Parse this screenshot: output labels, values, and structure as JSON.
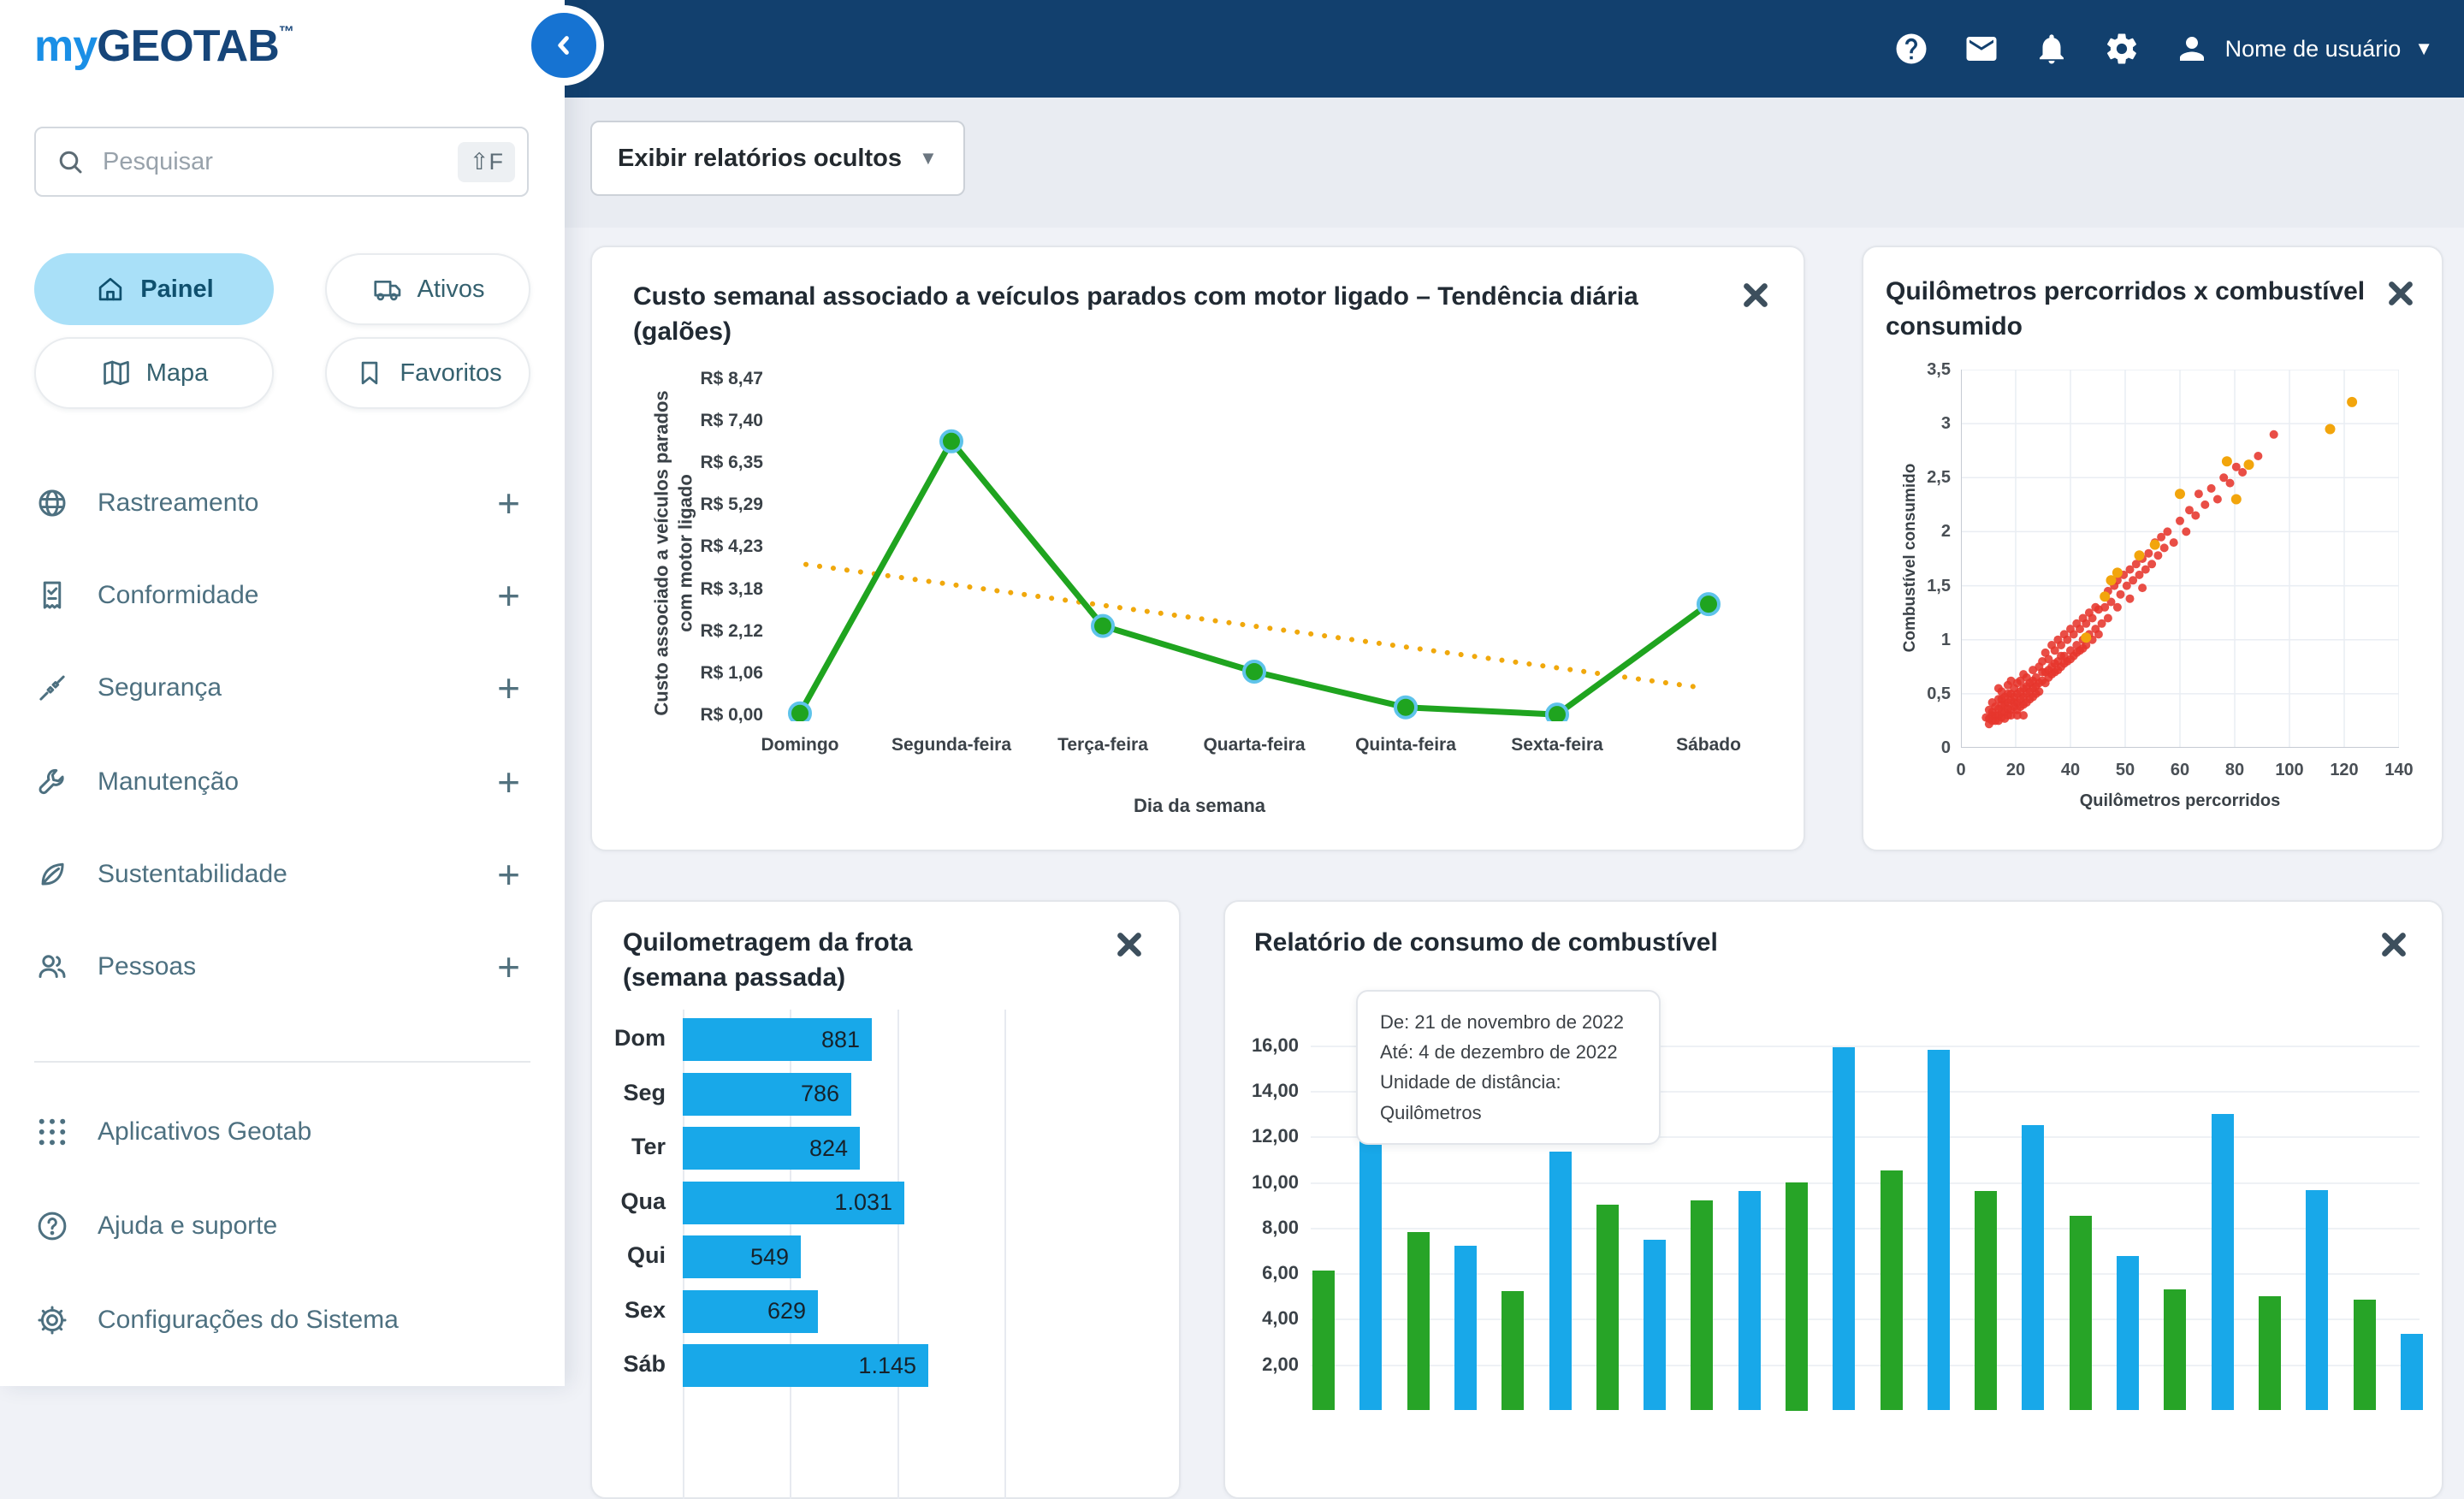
{
  "brand": {
    "logo_my": "my",
    "logo_geotab": "GEOTAB",
    "logo_tm": "™"
  },
  "topbar": {
    "username": "Nome de usuário"
  },
  "sidebar": {
    "search": {
      "placeholder": "Pesquisar",
      "shortcut": "⇧F"
    },
    "pills": [
      {
        "label": "Painel",
        "icon": "home",
        "active": true
      },
      {
        "label": "Ativos",
        "icon": "truck",
        "active": false
      },
      {
        "label": "Mapa",
        "icon": "map",
        "active": false
      },
      {
        "label": "Favoritos",
        "icon": "bookmark",
        "active": false
      }
    ],
    "items": [
      {
        "label": "Rastreamento",
        "icon": "globe"
      },
      {
        "label": "Conformidade",
        "icon": "document-check"
      },
      {
        "label": "Segurança",
        "icon": "seatbelt"
      },
      {
        "label": "Manutenção",
        "icon": "wrench"
      },
      {
        "label": "Sustentabilidade",
        "icon": "leaf"
      },
      {
        "label": "Pessoas",
        "icon": "people"
      }
    ],
    "footer_items": [
      {
        "label": "Aplicativos Geotab",
        "icon": "apps-grid"
      },
      {
        "label": "Ajuda e suporte",
        "icon": "help-circle"
      },
      {
        "label": "Configurações do Sistema",
        "icon": "gear-outline"
      }
    ]
  },
  "toolbar": {
    "show_hidden_reports": "Exibir relatórios ocultos"
  },
  "colors": {
    "topbar_bg": "#12406e",
    "accent_blue": "#1673d2",
    "active_pill": "#a9e0f8",
    "bar_blue": "#18a8e9",
    "bar_green": "#27a427",
    "line_green": "#1fa41f",
    "trend_yellow": "#f0a80c",
    "scatter_red": "#e6352c",
    "scatter_yellow": "#f2a50c"
  },
  "chart_data": [
    {
      "type": "line",
      "title": "Custo semanal associado a veículos parados com motor ligado – Tendência diária (galões)",
      "xlabel": "Dia da semana",
      "ylabel": "Custo associado a veículos parados com motor ligado",
      "categories": [
        "Domingo",
        "Segunda-feira",
        "Terça-feira",
        "Quarta-feira",
        "Quinta-feira",
        "Sexta-feira",
        "Sábado"
      ],
      "y_ticks": [
        "R$ 8,47",
        "R$ 7,40",
        "R$ 6,35",
        "R$ 5,29",
        "R$ 4,23",
        "R$ 3,18",
        "R$ 2,12",
        "R$ 1,06",
        "R$ 0,00"
      ],
      "ymax": 8.47,
      "series": [
        {
          "name": "Custo diário",
          "color": "#1fa41f",
          "style": "solid",
          "values": [
            0.05,
            6.9,
            2.25,
            1.1,
            0.2,
            0.02,
            2.8
          ]
        },
        {
          "name": "Tendência",
          "color": "#f0a80c",
          "style": "dotted",
          "values": [
            3.8,
            3.28,
            2.77,
            2.25,
            1.73,
            1.22,
            0.7
          ]
        }
      ],
      "legend": "none",
      "grid": false
    },
    {
      "type": "scatter",
      "title": "Quilômetros percorridos x combustível consumido",
      "xlabel": "Quilômetros percorridos",
      "ylabel": "Combustível consumido",
      "x_ticks": [
        "0",
        "20",
        "40",
        "50",
        "60",
        "80",
        "100",
        "120",
        "140"
      ],
      "y_ticks": [
        "3,5",
        "3",
        "2,5",
        "2",
        "1,5",
        "1",
        "0,5",
        "0"
      ],
      "xlim": [
        0,
        140
      ],
      "ylim": [
        0,
        3.5
      ],
      "grid": true,
      "legend": "none",
      "series": [
        {
          "name": "veículos",
          "color": "#e6352c",
          "points": [
            [
              8,
              0.28
            ],
            [
              9,
              0.22
            ],
            [
              9,
              0.35
            ],
            [
              10,
              0.3
            ],
            [
              10,
              0.42
            ],
            [
              11,
              0.25
            ],
            [
              11,
              0.38
            ],
            [
              12,
              0.3
            ],
            [
              12,
              0.45
            ],
            [
              12,
              0.55
            ],
            [
              13,
              0.28
            ],
            [
              13,
              0.4
            ],
            [
              13,
              0.52
            ],
            [
              14,
              0.33
            ],
            [
              14,
              0.47
            ],
            [
              15,
              0.3
            ],
            [
              15,
              0.42
            ],
            [
              15,
              0.58
            ],
            [
              16,
              0.35
            ],
            [
              16,
              0.5
            ],
            [
              16,
              0.62
            ],
            [
              17,
              0.38
            ],
            [
              17,
              0.55
            ],
            [
              18,
              0.42
            ],
            [
              18,
              0.6
            ],
            [
              18,
              0.3
            ],
            [
              19,
              0.45
            ],
            [
              19,
              0.62
            ],
            [
              20,
              0.4
            ],
            [
              20,
              0.55
            ],
            [
              20,
              0.68
            ],
            [
              21,
              0.5
            ],
            [
              21,
              0.65
            ],
            [
              22,
              0.45
            ],
            [
              22,
              0.6
            ],
            [
              23,
              0.55
            ],
            [
              23,
              0.72
            ],
            [
              24,
              0.5
            ],
            [
              24,
              0.65
            ],
            [
              25,
              0.6
            ],
            [
              9,
              0.27
            ],
            [
              10,
              0.33
            ],
            [
              11,
              0.3
            ],
            [
              12,
              0.36
            ],
            [
              13,
              0.33
            ],
            [
              14,
              0.4
            ],
            [
              15,
              0.36
            ],
            [
              16,
              0.44
            ],
            [
              17,
              0.47
            ],
            [
              18,
              0.5
            ],
            [
              19,
              0.38
            ],
            [
              20,
              0.47
            ],
            [
              21,
              0.42
            ],
            [
              22,
              0.52
            ],
            [
              23,
              0.47
            ],
            [
              24,
              0.57
            ],
            [
              14,
              0.27
            ],
            [
              16,
              0.3
            ],
            [
              18,
              0.35
            ],
            [
              20,
              0.3
            ],
            [
              12,
              0.25
            ],
            [
              10,
              0.25
            ],
            [
              13,
              0.45
            ],
            [
              15,
              0.5
            ],
            [
              17,
              0.42
            ],
            [
              19,
              0.52
            ],
            [
              21,
              0.57
            ],
            [
              23,
              0.62
            ],
            [
              25,
              0.52
            ],
            [
              26,
              0.7
            ],
            [
              25,
              0.75
            ],
            [
              26,
              0.62
            ],
            [
              26,
              0.8
            ],
            [
              27,
              0.7
            ],
            [
              27,
              0.88
            ],
            [
              28,
              0.65
            ],
            [
              28,
              0.82
            ],
            [
              29,
              0.75
            ],
            [
              29,
              0.95
            ],
            [
              30,
              0.7
            ],
            [
              30,
              0.9
            ],
            [
              31,
              0.8
            ],
            [
              31,
              1.0
            ],
            [
              32,
              0.75
            ],
            [
              32,
              0.95
            ],
            [
              33,
              0.85
            ],
            [
              33,
              1.05
            ],
            [
              34,
              0.8
            ],
            [
              34,
              1.0
            ],
            [
              35,
              0.9
            ],
            [
              35,
              1.1
            ],
            [
              36,
              0.85
            ],
            [
              36,
              1.05
            ],
            [
              37,
              0.95
            ],
            [
              37,
              1.15
            ],
            [
              38,
              0.9
            ],
            [
              38,
              1.1
            ],
            [
              39,
              1.0
            ],
            [
              39,
              1.2
            ],
            [
              40,
              0.95
            ],
            [
              40,
              1.15
            ],
            [
              41,
              1.05
            ],
            [
              41,
              1.25
            ],
            [
              42,
              1.0
            ],
            [
              42,
              1.2
            ],
            [
              43,
              1.1
            ],
            [
              43,
              1.3
            ],
            [
              44,
              1.05
            ],
            [
              44,
              1.28
            ],
            [
              45,
              1.15
            ],
            [
              27,
              0.6
            ],
            [
              29,
              0.68
            ],
            [
              31,
              0.72
            ],
            [
              33,
              0.78
            ],
            [
              35,
              0.82
            ],
            [
              37,
              0.88
            ],
            [
              39,
              0.92
            ],
            [
              28,
              0.72
            ],
            [
              30,
              0.78
            ],
            [
              32,
              0.85
            ],
            [
              46,
              1.3
            ],
            [
              47,
              1.2
            ],
            [
              47,
              1.45
            ],
            [
              48,
              1.35
            ],
            [
              49,
              1.5
            ],
            [
              50,
              1.3
            ],
            [
              50,
              1.55
            ],
            [
              51,
              1.42
            ],
            [
              52,
              1.6
            ],
            [
              53,
              1.5
            ],
            [
              54,
              1.38
            ],
            [
              54,
              1.65
            ],
            [
              55,
              1.55
            ],
            [
              56,
              1.7
            ],
            [
              57,
              1.6
            ],
            [
              58,
              1.48
            ],
            [
              58,
              1.75
            ],
            [
              59,
              1.65
            ],
            [
              60,
              1.8
            ],
            [
              61,
              1.7
            ],
            [
              62,
              1.9
            ],
            [
              63,
              1.78
            ],
            [
              64,
              1.95
            ],
            [
              65,
              1.85
            ],
            [
              66,
              2.0
            ],
            [
              68,
              1.9
            ],
            [
              70,
              2.1
            ],
            [
              72,
              2.0
            ],
            [
              73,
              2.2
            ],
            [
              75,
              2.15
            ],
            [
              76,
              2.35
            ],
            [
              78,
              2.25
            ],
            [
              80,
              2.4
            ],
            [
              82,
              2.3
            ],
            [
              84,
              2.5
            ],
            [
              86,
              2.45
            ],
            [
              88,
              2.6
            ],
            [
              90,
              2.55
            ],
            [
              95,
              2.7
            ],
            [
              100,
              2.9
            ]
          ]
        },
        {
          "name": "destaques",
          "color": "#f2a50c",
          "points": [
            [
              48,
              1.55
            ],
            [
              50,
              1.62
            ],
            [
              46,
              1.4
            ],
            [
              40,
              1.02
            ],
            [
              62,
              1.88
            ],
            [
              85,
              2.65
            ],
            [
              88,
              2.3
            ],
            [
              92,
              2.62
            ],
            [
              118,
              2.95
            ],
            [
              125,
              3.2
            ],
            [
              70,
              2.35
            ],
            [
              57,
              1.78
            ]
          ]
        }
      ]
    },
    {
      "type": "bar-horizontal",
      "title": "Quilometragem da frota (semana passada)",
      "title_lines": [
        "Quilometragem da frota",
        "(semana passada)"
      ],
      "categories": [
        "Dom",
        "Seg",
        "Ter",
        "Qua",
        "Qui",
        "Sex",
        "Sáb"
      ],
      "values": [
        881,
        786,
        824,
        1031,
        549,
        629,
        1145
      ],
      "value_labels": [
        "881",
        "786",
        "824",
        "1.031",
        "549",
        "629",
        "1.145"
      ],
      "xmax": 1500,
      "grid_values": [
        0,
        500,
        1000,
        1500
      ],
      "bar_color": "#18a8e9"
    },
    {
      "type": "bar",
      "title": "Relatório de consumo de combustível",
      "tooltip_lines": [
        "De: 21 de novembro de 2022",
        "Até: 4 de dezembro de 2022",
        "Unidade de distância:",
        "Quilômetros"
      ],
      "y_ticks": [
        "16,00",
        "14,00",
        "12,00",
        "10,00",
        "8,00",
        "6,00",
        "4,00",
        "2,00"
      ],
      "ymax": 16,
      "grid": true,
      "series": [
        {
          "name": "série verde",
          "color": "#27a427",
          "values": [
            6.1,
            7.8,
            5.2,
            9.0,
            9.2,
            10.0,
            10.5,
            9.6,
            8.5,
            5.3,
            5.0,
            4.85
          ]
        },
        {
          "name": "série azul",
          "color": "#18a8e9",
          "values": [
            12.5,
            7.2,
            11.35,
            7.45,
            9.6,
            15.9,
            15.8,
            12.5,
            6.75,
            13.0,
            9.65,
            3.35
          ]
        }
      ],
      "note": "eixo x cortado na borda inferior"
    }
  ]
}
